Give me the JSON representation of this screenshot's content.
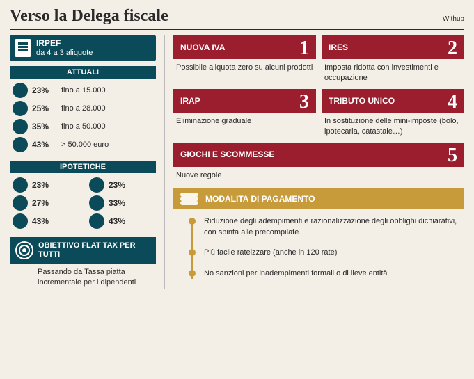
{
  "header": {
    "title": "Verso la Delega fiscale",
    "source": "Withub"
  },
  "irpef": {
    "label": "IRPEF",
    "sub": "da 4 a 3 aliquote"
  },
  "current": {
    "heading": "ATTUALI",
    "rows": [
      {
        "pct": "23%",
        "thr": "fino a 15.000"
      },
      {
        "pct": "25%",
        "thr": "fino a 28.000"
      },
      {
        "pct": "35%",
        "thr": "fino a 50.000"
      },
      {
        "pct": "43%",
        "thr": "> 50.000 euro"
      }
    ]
  },
  "hypothetical": {
    "heading": "IPOTETICHE",
    "colA": [
      "23%",
      "27%",
      "43%"
    ],
    "colB": [
      "23%",
      "33%",
      "43%"
    ]
  },
  "objective": {
    "title": "OBIETTIVO FLAT TAX PER TUTTI",
    "desc": "Passando da Tassa piatta incrementale per i dipendenti"
  },
  "cards": [
    {
      "num": "1",
      "title": "NUOVA IVA",
      "desc": "Possibile aliquota zero su alcuni prodotti"
    },
    {
      "num": "2",
      "title": "IRES",
      "desc": "Imposta ridotta con investimenti e occupazione"
    },
    {
      "num": "3",
      "title": "IRAP",
      "desc": "Eliminazione graduale"
    },
    {
      "num": "4",
      "title": "TRIBUTO UNICO",
      "desc": "In sostituzione delle mini-imposte (bolo, ipotecaria, catastale…)"
    },
    {
      "num": "5",
      "title": "GIOCHI E SCOMMESSE",
      "desc": "Nuove regole",
      "full": true
    }
  ],
  "payments": {
    "title": "MODALITA DI PAGAMENTO",
    "items": [
      "Riduzione degli adempimenti e razionalizzazione degli obblighi dichiarativi, con spinta alle precompilate",
      "Più facile rateizzare (anche in 120 rate)",
      "No sanzioni per inadempimenti formali o di lieve entità"
    ]
  },
  "colors": {
    "teal": "#0b4a58",
    "red": "#9b1e2f",
    "gold": "#c79a3a",
    "bg": "#f4efe6"
  }
}
